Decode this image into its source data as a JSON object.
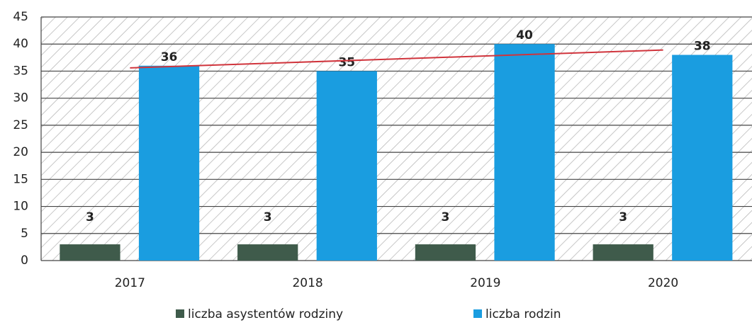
{
  "chart_data": {
    "type": "bar",
    "categories": [
      "2017",
      "2018",
      "2019",
      "2020"
    ],
    "series": [
      {
        "name": "liczba asystentów rodziny",
        "color": "#3f5b4b",
        "values": [
          3,
          3,
          3,
          3
        ]
      },
      {
        "name": "liczba rodzin",
        "color": "#1a9de0",
        "values": [
          36,
          35,
          40,
          38
        ]
      }
    ],
    "trendline": {
      "series": 1,
      "color": "#d0343c"
    },
    "ylim": [
      0,
      45
    ],
    "yticks": [
      0,
      5,
      10,
      15,
      20,
      25,
      30,
      35,
      40,
      45
    ],
    "grid": true,
    "legend": "bottom"
  }
}
